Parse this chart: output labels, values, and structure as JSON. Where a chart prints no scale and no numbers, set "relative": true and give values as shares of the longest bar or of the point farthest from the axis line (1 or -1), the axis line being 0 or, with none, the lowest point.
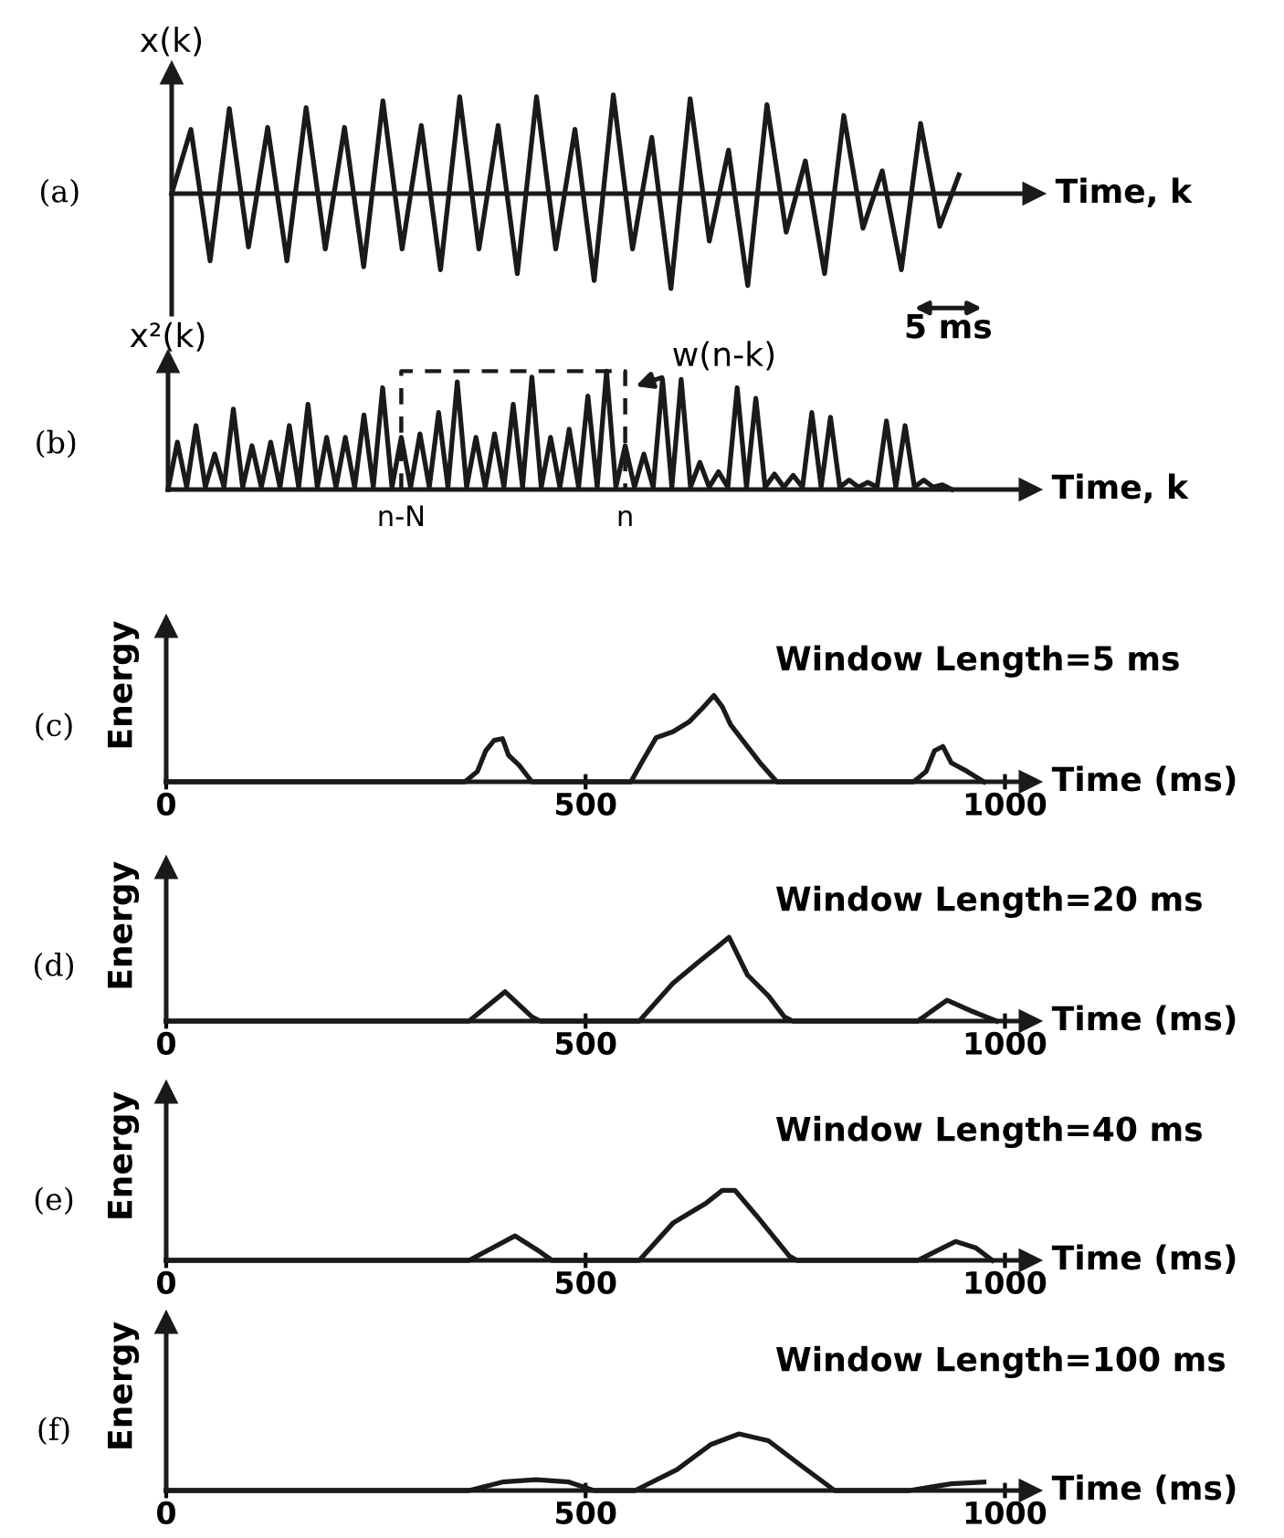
{
  "chart_data": [
    {
      "type": "line",
      "relative": true,
      "ylabel": "x(k)",
      "xlabel": "Time, k",
      "tick_labels": false,
      "annotations": [
        "(a)"
      ],
      "categories": [
        null,
        null,
        null,
        null,
        null,
        null,
        null,
        null,
        null,
        null,
        null,
        null,
        null,
        null,
        null,
        null,
        null,
        null,
        null,
        null,
        null,
        null,
        null,
        null,
        null,
        null,
        null,
        null,
        null,
        null,
        null,
        null,
        null,
        null,
        null,
        null,
        null,
        null,
        null,
        null,
        null,
        null
      ],
      "series": [
        {
          "color": "#1a1a1a",
          "values": [
            0,
            0.65,
            -0.68,
            0.86,
            -0.54,
            0.67,
            -0.68,
            0.87,
            -0.56,
            0.67,
            -0.74,
            0.94,
            -0.56,
            0.69,
            -0.77,
            0.98,
            -0.56,
            0.69,
            -0.81,
            0.98,
            -0.56,
            0.65,
            -0.88,
            1.0,
            -0.56,
            0.57,
            -0.96,
            0.96,
            -0.48,
            0.44,
            -0.93,
            0.9,
            -0.39,
            0.33,
            -0.81,
            0.79,
            -0.35,
            0.23,
            -0.77,
            0.71,
            -0.33,
            0.19
          ]
        }
      ]
    },
    {
      "type": "line",
      "relative": true,
      "ylabel": "x²(k)",
      "xlabel": "Time, k",
      "tick_labels": "x",
      "annotations": [
        "(b)",
        "5 ms",
        {
          "text": "w(n-k)",
          "x": "n",
          "y": 1.0
        }
      ],
      "categories": [
        null,
        null,
        null,
        null,
        null,
        null,
        null,
        null,
        null,
        null,
        null,
        null,
        null,
        null,
        null,
        null,
        null,
        null,
        null,
        null,
        null,
        null,
        null,
        null,
        null,
        "n-N",
        null,
        null,
        null,
        null,
        null,
        null,
        null,
        null,
        null,
        null,
        null,
        null,
        null,
        null,
        null,
        null,
        null,
        null,
        null,
        null,
        null,
        null,
        null,
        "n",
        null,
        null,
        null,
        null,
        null,
        null,
        null,
        null,
        null,
        null,
        null,
        null,
        null,
        null,
        null,
        null,
        null,
        null,
        null,
        null,
        null,
        null,
        null,
        null,
        null,
        null,
        null,
        null,
        null,
        null,
        null,
        null,
        null,
        null,
        null
      ],
      "series": [
        {
          "color": "#1a1a1a",
          "values": [
            0,
            0.4,
            0.02,
            0.54,
            0.02,
            0.3,
            0.02,
            0.68,
            0.02,
            0.37,
            0.02,
            0.4,
            0.02,
            0.54,
            0.02,
            0.72,
            0.02,
            0.44,
            0.02,
            0.44,
            0.02,
            0.63,
            0.02,
            0.86,
            0.02,
            0.44,
            0.02,
            0.47,
            0.02,
            0.65,
            0.02,
            0.91,
            0.02,
            0.44,
            0.02,
            0.47,
            0.02,
            0.72,
            0.02,
            0.95,
            0.02,
            0.44,
            0.02,
            0.51,
            0.02,
            0.79,
            0.02,
            1.0,
            0.02,
            0.37,
            0.02,
            0.3,
            0.02,
            0.93,
            0.02,
            0.93,
            0.02,
            0.23,
            0.02,
            0.15,
            0.02,
            0.86,
            0.02,
            0.77,
            0.02,
            0.13,
            0.02,
            0.12,
            0.02,
            0.65,
            0.02,
            0.61,
            0.02,
            0.08,
            0.02,
            0.06,
            0.02,
            0.58,
            0.02,
            0.54,
            0.02,
            0.08,
            0.02,
            0.04,
            0
          ]
        },
        {
          "type": "line",
          "line_style": "dashed",
          "color": "#1a1a1a",
          "x": [
            "n-N",
            "n-N",
            "n",
            "n"
          ],
          "values": [
            0,
            1.0,
            1.0,
            0
          ]
        }
      ]
    },
    {
      "type": "line",
      "relative": true,
      "title": "Window Length=5 ms",
      "ylabel": "Energy",
      "xlabel": "Time (ms)",
      "tick_labels": "x",
      "annotations": [
        "(c)"
      ],
      "xlim": [
        0,
        1030
      ],
      "xticks": [
        0,
        500,
        1000
      ],
      "x": [
        0,
        356,
        371,
        381,
        391,
        401,
        408,
        421,
        436,
        554,
        569,
        584,
        604,
        624,
        639,
        653,
        663,
        673,
        693,
        708,
        728,
        891,
        906,
        916,
        926,
        936,
        955,
        975
      ],
      "series": [
        {
          "color": "#1a1a1a",
          "values": [
            0,
            0,
            0.12,
            0.36,
            0.48,
            0.5,
            0.31,
            0.19,
            0,
            0,
            0.26,
            0.51,
            0.58,
            0.7,
            0.85,
            1.0,
            0.87,
            0.66,
            0.41,
            0.22,
            0,
            0,
            0.12,
            0.36,
            0.41,
            0.22,
            0.12,
            0
          ]
        }
      ]
    },
    {
      "type": "line",
      "relative": true,
      "title": "Window Length=20 ms",
      "ylabel": "Energy",
      "xlabel": "Time (ms)",
      "tick_labels": "x",
      "annotations": [
        "(d)"
      ],
      "xlim": [
        0,
        1030
      ],
      "xticks": [
        0,
        500,
        1000
      ],
      "x": [
        0,
        361,
        404,
        436,
        446,
        564,
        604,
        634,
        659,
        671,
        693,
        718,
        737,
        747,
        896,
        931,
        960,
        990
      ],
      "series": [
        {
          "color": "#1a1a1a",
          "values": [
            0,
            0,
            0.35,
            0.05,
            0,
            0,
            0.45,
            0.7,
            0.9,
            1.0,
            0.55,
            0.3,
            0.05,
            0,
            0,
            0.25,
            0.12,
            0
          ]
        }
      ]
    },
    {
      "type": "line",
      "relative": true,
      "title": "Window Length=40 ms",
      "ylabel": "Energy",
      "xlabel": "Time (ms)",
      "tick_labels": "x",
      "annotations": [
        "(e)"
      ],
      "xlim": [
        0,
        1030
      ],
      "xticks": [
        0,
        500,
        1000
      ],
      "x": [
        0,
        361,
        416,
        446,
        460,
        564,
        604,
        644,
        663,
        678,
        703,
        743,
        752,
        896,
        941,
        965,
        985
      ],
      "series": [
        {
          "color": "#1a1a1a",
          "values": [
            0,
            0,
            0.35,
            0.12,
            0,
            0,
            0.53,
            0.82,
            1.0,
            1.0,
            0.65,
            0.06,
            0,
            0,
            0.27,
            0.18,
            0
          ]
        }
      ]
    },
    {
      "type": "line",
      "relative": true,
      "title": "Window Length=100 ms",
      "ylabel": "Energy",
      "xlabel": "Time (ms)",
      "tick_labels": "x",
      "annotations": [
        "(f)"
      ],
      "xlim": [
        0,
        1030
      ],
      "xticks": [
        0,
        500,
        1000
      ],
      "x": [
        0,
        361,
        401,
        441,
        480,
        510,
        559,
        609,
        649,
        683,
        718,
        757,
        797,
        886,
        936,
        975
      ],
      "series": [
        {
          "color": "#1a1a1a",
          "values": [
            0,
            0,
            0.15,
            0.19,
            0.15,
            0,
            0,
            0.37,
            0.81,
            1.0,
            0.88,
            0.44,
            0,
            0,
            0.12,
            0.15
          ]
        }
      ]
    }
  ]
}
